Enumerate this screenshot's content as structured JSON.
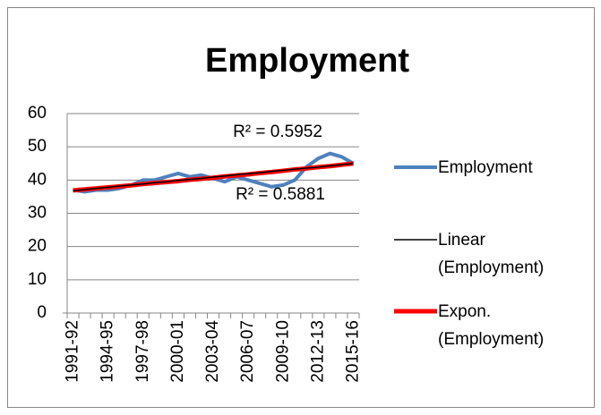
{
  "chart_data": {
    "type": "line",
    "title": "Employment",
    "categories": [
      "1991-92",
      null,
      null,
      "1994-95",
      null,
      null,
      "1997-98",
      null,
      null,
      "2000-01",
      null,
      null,
      "2003-04",
      null,
      null,
      "2006-07",
      null,
      null,
      "2009-10",
      null,
      null,
      "2012-13",
      null,
      null,
      "2015-16"
    ],
    "series": [
      {
        "name": "Employment",
        "color": "#4f81bd",
        "values": [
          37,
          36.5,
          37,
          37,
          37.5,
          38.5,
          40,
          40,
          41,
          42,
          41,
          41.5,
          40.5,
          39.5,
          41,
          40,
          39,
          38,
          38.5,
          40,
          44,
          46.5,
          48,
          47,
          45
        ]
      },
      {
        "name": "Linear (Employment)",
        "color": "#000000",
        "values": [
          36.8,
          37.1,
          37.5,
          37.8,
          38.2,
          38.5,
          38.8,
          39.2,
          39.5,
          39.9,
          40.2,
          40.5,
          40.9,
          41.2,
          41.6,
          41.9,
          42.2,
          42.6,
          42.9,
          43.3,
          43.6,
          43.9,
          44.3,
          44.6,
          45
        ]
      },
      {
        "name": "Expon. (Employment)",
        "color": "#ff0000",
        "values": [
          36.9,
          37.2,
          37.5,
          37.8,
          38.1,
          38.4,
          38.8,
          39.1,
          39.4,
          39.7,
          40.1,
          40.4,
          40.7,
          41.1,
          41.4,
          41.7,
          42.1,
          42.4,
          42.8,
          43.2,
          43.5,
          43.9,
          44.2,
          44.6,
          45
        ]
      }
    ],
    "annotations": [
      "R² = 0.5952",
      "R² = 0.5881"
    ],
    "ylim": [
      0,
      60
    ],
    "yticks": [
      0,
      10,
      20,
      30,
      40,
      50,
      60
    ],
    "grid": true,
    "legend": "right"
  }
}
